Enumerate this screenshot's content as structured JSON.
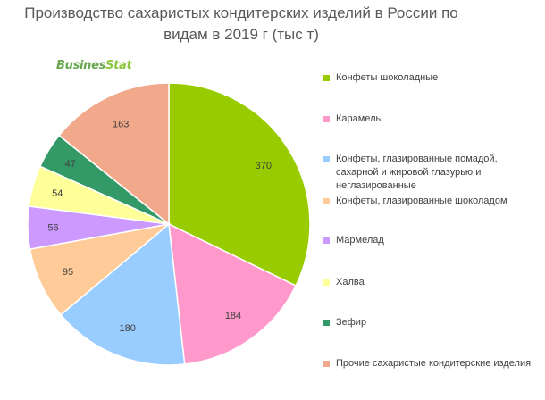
{
  "chart_data": {
    "type": "pie",
    "title_lines": [
      "Производство сахаристых кондитерских изделий в России по",
      "видам в 2019 г (тыс т)"
    ],
    "logo_text": "BusinesStat",
    "start_angle_deg": 0,
    "direction": "clockwise",
    "data_labels": true,
    "legend_position": "right",
    "slices": [
      {
        "label": "Конфеты шоколадные",
        "value": 370,
        "color": "#99cc00"
      },
      {
        "label": "Карамель",
        "value": 184,
        "color": "#ff99cc"
      },
      {
        "label": "Конфеты,  глазированные помадой, сахарной и жировой глазурью и неглазированные",
        "value": 180,
        "color": "#99ccff"
      },
      {
        "label": "Конфеты,  глазированные шоколадом",
        "value": 95,
        "color": "#ffcc99"
      },
      {
        "label": "Мармелад",
        "value": 56,
        "color": "#cc99ff"
      },
      {
        "label": "Халва",
        "value": 54,
        "color": "#ffff99"
      },
      {
        "label": "Зефир",
        "value": 47,
        "color": "#339966"
      },
      {
        "label": "Прочие сахаристые кондитерские изделия",
        "value": 163,
        "color": "#f2a88a"
      }
    ]
  }
}
